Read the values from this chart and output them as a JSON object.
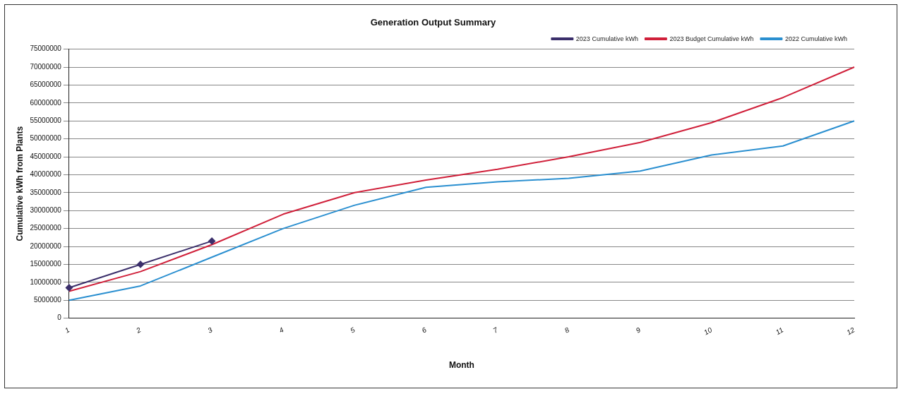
{
  "chart_data": {
    "type": "line",
    "title": "Generation Output Summary",
    "xlabel": "Month",
    "ylabel": "Cumulative kWh from Plants",
    "categories": [
      "1",
      "2",
      "3",
      "4",
      "5",
      "6",
      "7",
      "8",
      "9",
      "10",
      "11",
      "12"
    ],
    "series": [
      {
        "name": "2023 Cumulative kWh",
        "color": "#3b2f6b",
        "marker": "diamond",
        "values": [
          8500000,
          15000000,
          21500000,
          null,
          null,
          null,
          null,
          null,
          null,
          null,
          null,
          null
        ]
      },
      {
        "name": "2023 Budget Cumulative kWh",
        "color": "#d0203a",
        "marker": "none",
        "values": [
          7500000,
          13000000,
          20500000,
          29000000,
          35000000,
          38500000,
          41500000,
          45000000,
          49000000,
          54500000,
          61500000,
          70000000
        ]
      },
      {
        "name": "2022 Cumulative kWh",
        "color": "#2a8fd0",
        "marker": "none",
        "values": [
          5000000,
          9000000,
          17000000,
          25000000,
          31500000,
          36500000,
          38000000,
          39000000,
          41000000,
          45500000,
          48000000,
          55000000
        ]
      }
    ],
    "ylim": [
      0,
      75000000
    ],
    "yticks": [
      0,
      5000000,
      10000000,
      15000000,
      20000000,
      25000000,
      30000000,
      35000000,
      40000000,
      45000000,
      50000000,
      55000000,
      60000000,
      65000000,
      70000000,
      75000000
    ],
    "grid": "y",
    "legend": "top right",
    "line_style": "solid"
  }
}
